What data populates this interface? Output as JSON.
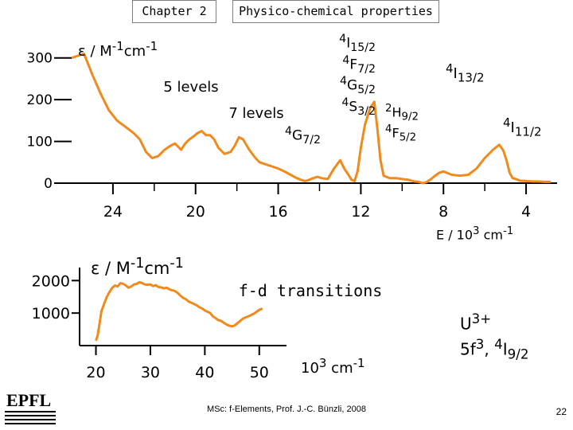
{
  "header": {
    "chapter": "Chapter 2",
    "title": "Physico-chemical properties"
  },
  "colors": {
    "curve": "#f08a1c",
    "axis": "#000000"
  },
  "chart_data": [
    {
      "type": "line",
      "ylabel_html": "ε / M<sup>-1</sup>cm<sup>-1</sup>",
      "xlabel_html": "E / 10<sup>3</sup> cm<sup>-1</sup>",
      "x_ticks": [
        "24",
        "20",
        "16",
        "12",
        "8",
        "4"
      ],
      "y_ticks": [
        "300",
        "200",
        "100",
        "0"
      ],
      "xlim": [
        26,
        2.5
      ],
      "ylim": [
        0,
        330
      ],
      "annotations": {
        "five_levels": "5 levels",
        "seven_levels": "7 levels",
        "group_html": [
          "<sup>4</sup>I<sub>15/2</sub>",
          "<sup>4</sup>F<sub>7/2</sub>",
          "<sup>4</sup>G<sub>5/2</sub>",
          "<sup>4</sup>S<sub>3/2</sub>"
        ],
        "g72_html": "<sup>4</sup>G<sub>7/2</sub>",
        "h92_html": "<sup>2</sup>H<sub>9/2</sub>",
        "f52_html": "<sup>4</sup>F<sub>5/2</sub>",
        "i132_html": "<sup>4</sup>I<sub>13/2</sub>",
        "i112_html": "<sup>4</sup>I<sub>11/2</sub>"
      },
      "series": [
        {
          "x": [
            26.0,
            25.4,
            25.0,
            24.6,
            24.2,
            23.8,
            23.4,
            23.0,
            22.7,
            22.4,
            22.1,
            21.8,
            21.5,
            21.2,
            21.0,
            20.7,
            20.5,
            20.3,
            20.1,
            19.9,
            19.7,
            19.5,
            19.3,
            19.1,
            18.9,
            18.6,
            18.3,
            18.1,
            17.9,
            17.7,
            17.4,
            17.1,
            16.9,
            16.6,
            16.3,
            16.0,
            15.7,
            15.4,
            15.1,
            14.9,
            14.7,
            14.5,
            14.3,
            14.1,
            13.9,
            13.6,
            13.3,
            13.0,
            12.8,
            12.6,
            12.45,
            12.3,
            12.15,
            12.0,
            11.8,
            11.55,
            11.35,
            11.2,
            11.05,
            10.9,
            10.6,
            10.3,
            10.0,
            9.7,
            9.4,
            9.2,
            9.0,
            8.8,
            8.6,
            8.4,
            8.2,
            8.0,
            7.6,
            7.2,
            6.8,
            6.4,
            6.0,
            5.6,
            5.3,
            5.1,
            4.95,
            4.8,
            4.65,
            4.5,
            4.3,
            4.0,
            3.7,
            3.4,
            3.1,
            2.8
          ],
          "y": [
            300,
            310,
            260,
            215,
            175,
            150,
            135,
            120,
            105,
            75,
            60,
            65,
            80,
            90,
            95,
            80,
            95,
            105,
            112,
            120,
            125,
            115,
            115,
            105,
            85,
            70,
            75,
            90,
            110,
            105,
            80,
            60,
            50,
            45,
            40,
            35,
            28,
            20,
            12,
            8,
            5,
            8,
            12,
            15,
            12,
            10,
            35,
            55,
            35,
            20,
            8,
            5,
            30,
            85,
            140,
            180,
            195,
            130,
            55,
            18,
            12,
            12,
            10,
            8,
            4,
            3,
            0,
            3,
            10,
            18,
            25,
            28,
            20,
            18,
            20,
            35,
            60,
            80,
            92,
            78,
            55,
            25,
            12,
            10,
            6,
            5,
            4,
            4,
            3,
            3
          ]
        }
      ]
    },
    {
      "type": "line",
      "ylabel_html": "ε / M<sup>-1</sup>cm<sup>-1</sup>",
      "xlabel_html": "10<sup>3</sup> cm<sup>-1</sup>",
      "x_ticks": [
        "20",
        "30",
        "40",
        "50"
      ],
      "y_ticks": [
        "2000",
        "1000"
      ],
      "xlim": [
        17,
        55
      ],
      "ylim": [
        0,
        2400
      ],
      "annotations": {
        "fd": "f-d transitions"
      },
      "series": [
        {
          "x": [
            20.0,
            20.3,
            20.6,
            21.0,
            21.5,
            22.0,
            22.5,
            23.0,
            23.5,
            24.0,
            24.5,
            25.0,
            25.5,
            26.0,
            26.5,
            27.0,
            27.5,
            28.0,
            28.5,
            29.0,
            29.5,
            30.0,
            30.5,
            31.0,
            31.5,
            32.0,
            32.5,
            33.0,
            33.5,
            34.0,
            34.5,
            35.0,
            35.5,
            36.0,
            36.5,
            37.0,
            37.5,
            38.0,
            38.5,
            39.0,
            39.5,
            40.0,
            40.5,
            41.0,
            41.5,
            42.0,
            42.5,
            43.0,
            43.5,
            44.0,
            44.5,
            45.0,
            45.5,
            46.0,
            46.5,
            47.0,
            47.5,
            48.0,
            48.5,
            49.0,
            49.5,
            50.0,
            50.6
          ],
          "y": [
            150,
            300,
            600,
            1050,
            1280,
            1500,
            1650,
            1780,
            1850,
            1820,
            1920,
            1900,
            1850,
            1780,
            1820,
            1880,
            1900,
            1950,
            1920,
            1880,
            1870,
            1880,
            1830,
            1860,
            1800,
            1790,
            1760,
            1780,
            1730,
            1700,
            1680,
            1620,
            1540,
            1470,
            1430,
            1360,
            1320,
            1280,
            1240,
            1180,
            1140,
            1080,
            1040,
            1000,
            900,
            840,
            780,
            760,
            700,
            650,
            610,
            590,
            620,
            690,
            760,
            830,
            870,
            900,
            940,
            980,
            1040,
            1100,
            1140
          ]
        }
      ]
    }
  ],
  "side_note": {
    "ion_html": "U<sup>3+</sup>",
    "config_html": "5f<sup>3</sup>, <sup>4</sup>I<sub>9/2</sub>"
  },
  "footer": {
    "credit": "MSc: f-Elements,  Prof. J.-C. Bünzli, 2008",
    "page": "22"
  },
  "logo": {
    "text": "EPFL"
  }
}
